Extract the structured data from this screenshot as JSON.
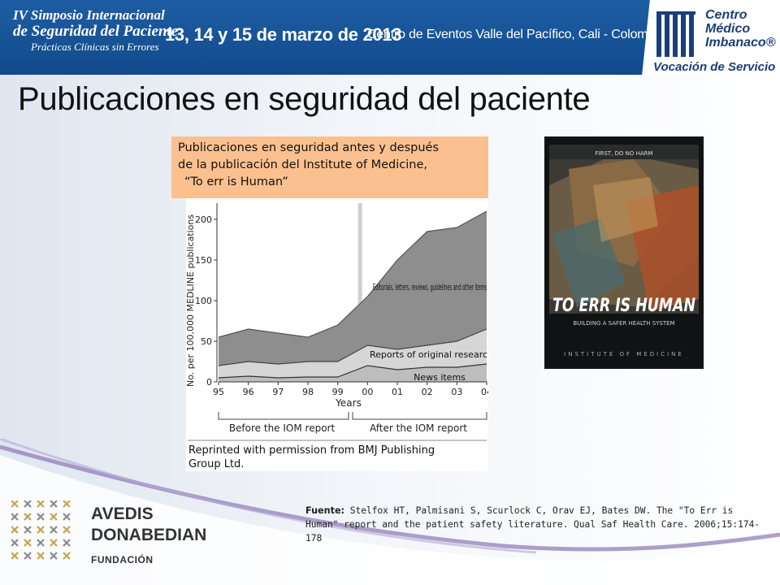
{
  "header": {
    "symposium_line1": "IV Simposio Internacional",
    "symposium_line2": "de Seguridad del Paciente",
    "symposium_line3": "Prácticas Clínicas sin Errores",
    "dates": "13, 14 y 15 de marzo de 2013",
    "venue": "Centro de Eventos Valle del Pacífico, Cali - Colombia",
    "brand_line1": "Centro",
    "brand_line2": "Médico",
    "brand_line3": "Imbanaco®",
    "slogan": "Vocación de Servicio",
    "colors": {
      "banner_blue": "#1e5da3",
      "brand_dark": "#1c3e78"
    }
  },
  "slide": {
    "title": "Publicaciones en seguridad del paciente",
    "caption_line1": "Publicaciones en seguridad antes y después",
    "caption_line2": "de la publicación del Institute of Medicine,",
    "caption_line3": "“To err is Human”",
    "caption_color": "#fbc08f"
  },
  "chart_data": {
    "type": "area",
    "ylabel": "No. per 100,000 MEDLINE publications",
    "xlabel": "Years",
    "x": [
      "95",
      "96",
      "97",
      "98",
      "99",
      "00",
      "01",
      "02",
      "03",
      "04"
    ],
    "yticks": [
      0,
      50,
      100,
      150,
      200
    ],
    "ylim": [
      0,
      220
    ],
    "event_marker": "99.75",
    "series": [
      {
        "name": "Editorials, letters, reviews, guidelines and other items",
        "values": [
          55,
          65,
          60,
          55,
          70,
          105,
          150,
          185,
          190,
          210
        ]
      },
      {
        "name": "Reports of original research",
        "values": [
          20,
          25,
          22,
          25,
          25,
          45,
          40,
          45,
          50,
          65
        ]
      },
      {
        "name": "News items",
        "values": [
          5,
          7,
          5,
          6,
          6,
          20,
          15,
          18,
          18,
          22
        ]
      }
    ],
    "before_label": "Before the IOM report",
    "after_label": "After the IOM report",
    "permission_line1": "Reprinted with permission from BMJ Publishing",
    "permission_line2": "Group Ltd."
  },
  "book": {
    "title": "TO ERR IS HUMAN",
    "subtitle": "BUILDING A SAFER HEALTH SYSTEM",
    "publisher": "INSTITUTE OF MEDICINE",
    "tagline": "FIRST, DO NO HARM"
  },
  "source": {
    "label": "Fuente:",
    "text": "Stelfox HT, Palmisani S, Scurlock C, Orav EJ, Bates DW. The \"To Err is Human\" report and the patient safety literature. Qual Saf Health Care. 2006;15:174-178"
  },
  "footer": {
    "avedis": "AVEDIS",
    "donabedian": "DONABEDIAN",
    "fundacion": "FUNDACIÓN"
  }
}
